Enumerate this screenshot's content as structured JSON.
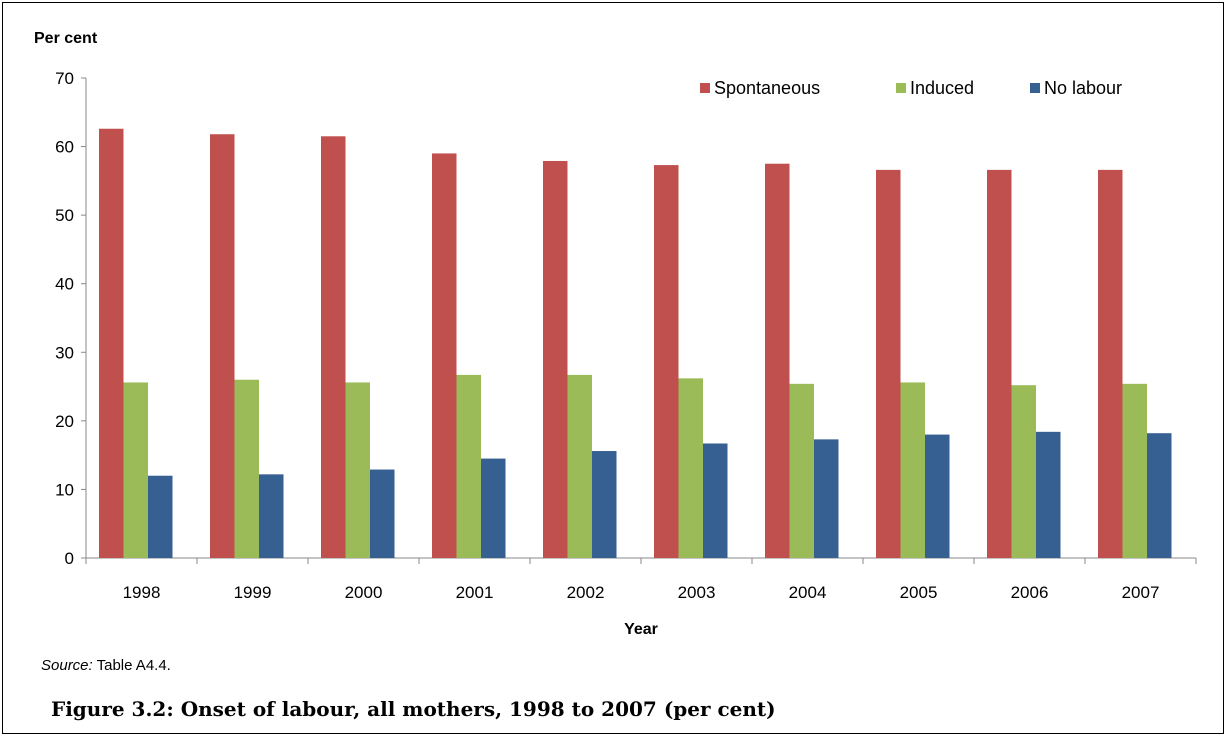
{
  "chart_data": {
    "type": "bar",
    "ylabel": "Per cent",
    "xlabel": "Year",
    "ylim": [
      0,
      70
    ],
    "yticks": [
      0,
      10,
      20,
      30,
      40,
      50,
      60,
      70
    ],
    "grid": false,
    "legend_position": "top-right",
    "categories": [
      "1998",
      "1999",
      "2000",
      "2001",
      "2002",
      "2003",
      "2004",
      "2005",
      "2006",
      "2007"
    ],
    "series": [
      {
        "name": "Spontaneous",
        "color": "#C0504D",
        "values": [
          62.6,
          61.8,
          61.5,
          59.0,
          57.9,
          57.3,
          57.5,
          56.6,
          56.6,
          56.6
        ]
      },
      {
        "name": "Induced",
        "color": "#9BBB59",
        "values": [
          25.6,
          26.0,
          25.6,
          26.7,
          26.7,
          26.2,
          25.4,
          25.6,
          25.2,
          25.4
        ]
      },
      {
        "name": "No labour",
        "color": "#376092",
        "values": [
          12.0,
          12.2,
          12.9,
          14.5,
          15.6,
          16.7,
          17.3,
          18.0,
          18.4,
          18.2
        ]
      }
    ]
  },
  "source": {
    "label": "Source:",
    "text": "Table A4.4."
  },
  "caption": "Figure 3.2: Onset of labour, all mothers, 1998 to 2007 (per cent)"
}
